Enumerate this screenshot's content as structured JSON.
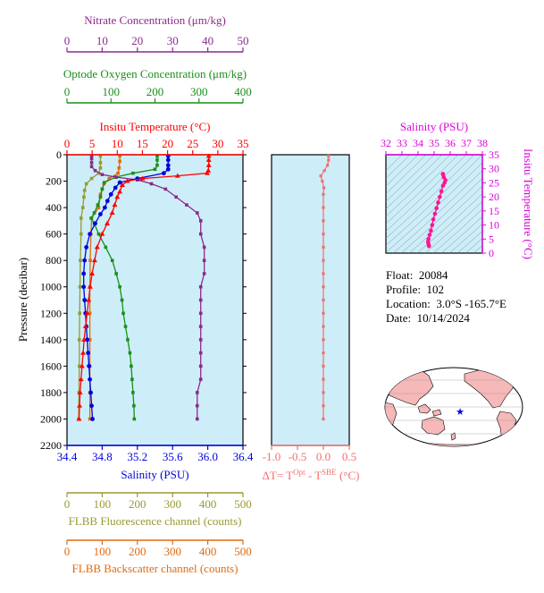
{
  "colors": {
    "nitrate": "#8b2a8b",
    "oxygen": "#1a8f1a",
    "temperature": "#ff0000",
    "salinity": "#0000dd",
    "fluorescence": "#999933",
    "backscatter": "#e06a10",
    "delta_t": "#f07070",
    "magenta": "#dd00dd",
    "panel_bg": "#cdeef8",
    "frame": "#000000"
  },
  "info": {
    "float_label": "Float:",
    "float_value": "20084",
    "profile_label": "Profile:",
    "profile_value": "102",
    "location_label": "Location:",
    "location_value": "3.0°S  -165.7°E",
    "date_label": "Date:",
    "date_value": "10/14/2024"
  },
  "chart_data": [
    {
      "id": "profiles",
      "type": "line",
      "y_axis": {
        "label": "Pressure (decibar)",
        "range": [
          2200,
          0
        ],
        "ticks": [
          0,
          200,
          400,
          600,
          800,
          1000,
          1200,
          1400,
          1600,
          1800,
          2000,
          2200
        ]
      },
      "axes": {
        "nitrate": {
          "title": "Nitrate Concentration (μm/kg)",
          "range": [
            0,
            50
          ],
          "ticks": [
            0,
            10,
            20,
            30,
            40,
            50
          ]
        },
        "oxygen": {
          "title": "Optode Oxygen Concentration (μm/kg)",
          "range": [
            0,
            400
          ],
          "ticks": [
            0,
            100,
            200,
            300,
            400
          ]
        },
        "temperature": {
          "title": "Insitu Temperature (°C)",
          "range": [
            0,
            35
          ],
          "ticks": [
            0,
            5,
            10,
            15,
            20,
            25,
            30,
            35
          ]
        },
        "salinity": {
          "title": "Salinity (PSU)",
          "range": [
            34.4,
            36.4
          ],
          "ticks": [
            "34.4",
            "34.8",
            "35.2",
            "35.6",
            "36.0",
            "36.4"
          ]
        },
        "fluorescence": {
          "title": "FLBB Fluorescence channel (counts)",
          "range": [
            0,
            500
          ],
          "ticks": [
            0,
            100,
            200,
            300,
            400,
            500
          ]
        },
        "backscatter": {
          "title": "FLBB Backscatter channel (counts)",
          "range": [
            0,
            500
          ],
          "ticks": [
            0,
            100,
            200,
            300,
            400,
            500
          ]
        }
      },
      "series": [
        {
          "key": "nitrate",
          "points": [
            [
              7,
              10
            ],
            [
              7,
              30
            ],
            [
              7,
              60
            ],
            [
              7,
              90
            ],
            [
              8,
              120
            ],
            [
              10,
              150
            ],
            [
              14,
              170
            ],
            [
              20,
              190
            ],
            [
              24,
              220
            ],
            [
              28,
              260
            ],
            [
              31,
              320
            ],
            [
              34,
              380
            ],
            [
              37,
              440
            ],
            [
              38,
              500
            ],
            [
              38,
              600
            ],
            [
              39,
              700
            ],
            [
              39,
              800
            ],
            [
              39,
              900
            ],
            [
              38,
              1000
            ],
            [
              38,
              1100
            ],
            [
              38,
              1200
            ],
            [
              38,
              1300
            ],
            [
              38,
              1400
            ],
            [
              38,
              1500
            ],
            [
              38,
              1600
            ],
            [
              38,
              1700
            ],
            [
              37,
              1800
            ],
            [
              37,
              1900
            ],
            [
              37,
              2000
            ]
          ]
        },
        {
          "key": "oxygen",
          "points": [
            [
              205,
              10
            ],
            [
              205,
              40
            ],
            [
              205,
              80
            ],
            [
              200,
              110
            ],
            [
              150,
              140
            ],
            [
              110,
              170
            ],
            [
              85,
              210
            ],
            [
              80,
              260
            ],
            [
              76,
              320
            ],
            [
              70,
              380
            ],
            [
              62,
              440
            ],
            [
              55,
              480
            ],
            [
              62,
              520
            ],
            [
              72,
              600
            ],
            [
              88,
              700
            ],
            [
              103,
              800
            ],
            [
              112,
              900
            ],
            [
              120,
              1000
            ],
            [
              125,
              1100
            ],
            [
              128,
              1200
            ],
            [
              133,
              1300
            ],
            [
              138,
              1400
            ],
            [
              143,
              1500
            ],
            [
              146,
              1600
            ],
            [
              148,
              1700
            ],
            [
              150,
              1800
            ],
            [
              152,
              1900
            ],
            [
              153,
              2000
            ]
          ]
        },
        {
          "key": "temperature",
          "points": [
            [
              28.2,
              10
            ],
            [
              28.2,
              40
            ],
            [
              28.2,
              80
            ],
            [
              28.1,
              120
            ],
            [
              27.9,
              140
            ],
            [
              22,
              160
            ],
            [
              15,
              180
            ],
            [
              12,
              200
            ],
            [
              11,
              230
            ],
            [
              10.5,
              280
            ],
            [
              10,
              320
            ],
            [
              9.5,
              380
            ],
            [
              9,
              440
            ],
            [
              8,
              520
            ],
            [
              7,
              600
            ],
            [
              6,
              700
            ],
            [
              5.5,
              800
            ],
            [
              5,
              900
            ],
            [
              4.6,
              1000
            ],
            [
              4.3,
              1100
            ],
            [
              4,
              1200
            ],
            [
              3.7,
              1300
            ],
            [
              3.4,
              1400
            ],
            [
              3.2,
              1500
            ],
            [
              3,
              1600
            ],
            [
              2.8,
              1700
            ],
            [
              2.6,
              1800
            ],
            [
              2.5,
              1900
            ],
            [
              2.4,
              2000
            ]
          ]
        },
        {
          "key": "salinity",
          "points": [
            [
              35.55,
              10
            ],
            [
              35.55,
              40
            ],
            [
              35.55,
              80
            ],
            [
              35.55,
              110
            ],
            [
              35.5,
              140
            ],
            [
              35.2,
              180
            ],
            [
              35.0,
              210
            ],
            [
              34.95,
              250
            ],
            [
              34.9,
              300
            ],
            [
              34.86,
              350
            ],
            [
              34.83,
              400
            ],
            [
              34.78,
              450
            ],
            [
              34.72,
              520
            ],
            [
              34.66,
              600
            ],
            [
              34.62,
              700
            ],
            [
              34.6,
              800
            ],
            [
              34.59,
              900
            ],
            [
              34.59,
              1000
            ],
            [
              34.6,
              1100
            ],
            [
              34.61,
              1200
            ],
            [
              34.62,
              1300
            ],
            [
              34.63,
              1400
            ],
            [
              34.64,
              1500
            ],
            [
              34.65,
              1600
            ],
            [
              34.66,
              1700
            ],
            [
              34.67,
              1800
            ],
            [
              34.68,
              1900
            ],
            [
              34.69,
              2000
            ]
          ]
        },
        {
          "key": "fluorescence",
          "points": [
            [
              95,
              10
            ],
            [
              95,
              60
            ],
            [
              95,
              100
            ],
            [
              90,
              140
            ],
            [
              70,
              180
            ],
            [
              55,
              220
            ],
            [
              50,
              270
            ],
            [
              48,
              320
            ],
            [
              45,
              400
            ],
            [
              40,
              480
            ],
            [
              40,
              600
            ],
            [
              38,
              800
            ],
            [
              37,
              1000
            ],
            [
              36,
              1200
            ],
            [
              35,
              1400
            ],
            [
              35,
              1600
            ],
            [
              34,
              1800
            ],
            [
              33,
              2000
            ]
          ]
        },
        {
          "key": "backscatter",
          "points": [
            [
              150,
              10
            ],
            [
              150,
              50
            ],
            [
              148,
              100
            ],
            [
              145,
              140
            ],
            [
              120,
              180
            ],
            [
              105,
              220
            ],
            [
              100,
              260
            ],
            [
              95,
              300
            ],
            [
              90,
              400
            ],
            [
              70,
              480
            ],
            [
              68,
              600
            ],
            [
              66,
              800
            ],
            [
              65,
              1000
            ],
            [
              65,
              1200
            ],
            [
              65,
              1400
            ],
            [
              65,
              1600
            ],
            [
              65,
              1800
            ],
            [
              65,
              2000
            ]
          ]
        }
      ]
    },
    {
      "id": "delta_t",
      "type": "line",
      "xlabel": "ΔT= T^Opt - T^SBE (°C)",
      "x_range": [
        -1.0,
        0.5
      ],
      "x_ticks": [
        "-1.0",
        "-0.5",
        "0.0",
        "0.5"
      ],
      "y_range": [
        2200,
        0
      ],
      "series": [
        {
          "key": "delta_t",
          "points": [
            [
              0.1,
              10
            ],
            [
              0.1,
              40
            ],
            [
              0.08,
              80
            ],
            [
              0.02,
              120
            ],
            [
              -0.05,
              160
            ],
            [
              -0.02,
              200
            ],
            [
              0.01,
              250
            ],
            [
              0.0,
              300
            ],
            [
              0.0,
              400
            ],
            [
              0.0,
              500
            ],
            [
              0.0,
              600
            ],
            [
              0.0,
              700
            ],
            [
              0.0,
              800
            ],
            [
              0.0,
              900
            ],
            [
              0.0,
              1000
            ],
            [
              0.0,
              1100
            ],
            [
              0.0,
              1200
            ],
            [
              0.0,
              1300
            ],
            [
              0.0,
              1400
            ],
            [
              0.0,
              1500
            ],
            [
              0.0,
              1600
            ],
            [
              0.0,
              1700
            ],
            [
              0.0,
              1800
            ],
            [
              0.0,
              1900
            ],
            [
              0.0,
              2000
            ]
          ]
        }
      ]
    },
    {
      "id": "ts_diagram",
      "type": "scatter",
      "title": "Salinity (PSU)",
      "ylabel": "Insitu Temperature (°C)",
      "x_range": [
        32,
        38
      ],
      "x_ticks": [
        "32",
        "33",
        "34",
        "35",
        "36",
        "37",
        "38"
      ],
      "y_range": [
        0,
        35
      ],
      "y_ticks": [
        "0",
        "5",
        "10",
        "15",
        "20",
        "25",
        "30",
        "35"
      ],
      "points": [
        [
          35.55,
          28.2
        ],
        [
          35.55,
          28.0
        ],
        [
          35.6,
          27.0
        ],
        [
          35.7,
          26.0
        ],
        [
          35.65,
          25.0
        ],
        [
          35.55,
          24.0
        ],
        [
          35.45,
          22.0
        ],
        [
          35.35,
          20.0
        ],
        [
          35.25,
          18.0
        ],
        [
          35.15,
          16.0
        ],
        [
          35.05,
          14.0
        ],
        [
          34.95,
          12.0
        ],
        [
          34.88,
          10.0
        ],
        [
          34.8,
          8.0
        ],
        [
          34.72,
          6.5
        ],
        [
          34.65,
          5.0
        ],
        [
          34.62,
          4.0
        ],
        [
          34.65,
          3.2
        ],
        [
          34.68,
          2.5
        ]
      ]
    },
    {
      "id": "location_map",
      "type": "map",
      "marker": {
        "lat": -3.0,
        "lon": -165.7
      }
    }
  ]
}
